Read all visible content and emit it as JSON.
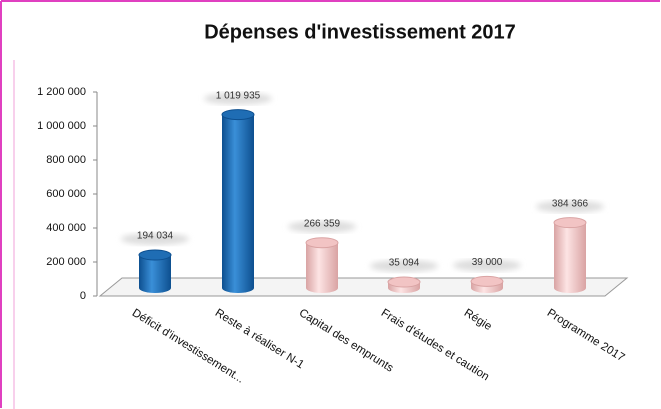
{
  "chart_data": {
    "type": "bar",
    "title": "Dépenses d'investissement 2017",
    "categories": [
      "Déficit d'investissement...",
      "Reste à réaliser N-1",
      "Capital des emprunts",
      "Frais d'études et caution",
      "Régie",
      "Programme 2017"
    ],
    "values": [
      194034,
      1019935,
      266359,
      35094,
      39000,
      384366
    ],
    "value_labels": [
      "194 034",
      "1 019 935",
      "266 359",
      "35 094",
      "39 000",
      "384 366"
    ],
    "colors": [
      "#1f6db4",
      "#1f6db4",
      "#f2c4c4",
      "#f2c4c4",
      "#f2c4c4",
      "#f2c4c4"
    ],
    "ylim": [
      0,
      1200000
    ],
    "yticks": [
      0,
      {
        "value": 200000,
        "label": "200 000"
      },
      {
        "value": 400000,
        "label": "400 000"
      },
      {
        "value": 600000,
        "label": "600 000"
      },
      {
        "value": 800000,
        "label": "800 000"
      },
      {
        "value": 1000000,
        "label": "1 000 000"
      },
      {
        "value": 1200000,
        "label": "1 200 000"
      }
    ]
  }
}
